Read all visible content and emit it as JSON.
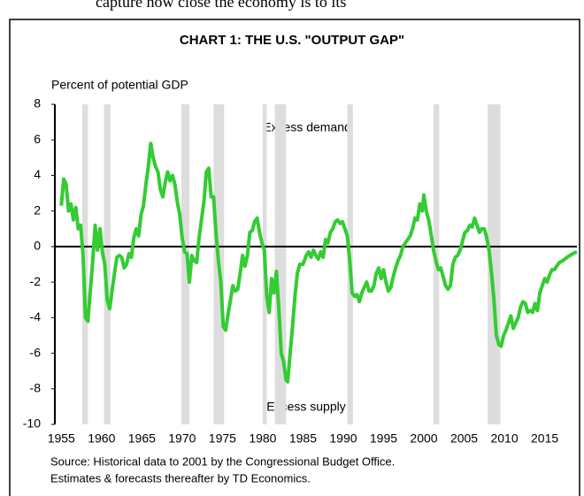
{
  "page_text": "capture how close the economy is to its",
  "chart_data": {
    "type": "line",
    "title": "CHART 1: THE U.S. \"OUTPUT GAP\"",
    "y_label": "Percent of potential GDP",
    "annotations": [
      "Excess demand",
      "Excess supply"
    ],
    "source": [
      "Source: Historical data to 2001 by the Congressional Budget Office.",
      "Estimates & forecasts thereafter by TD Economics."
    ],
    "xlim": [
      1954.2,
      2019
    ],
    "ylim": [
      -10,
      8
    ],
    "xticks": [
      1955,
      1960,
      1965,
      1970,
      1975,
      1980,
      1985,
      1990,
      1995,
      2000,
      2005,
      2010,
      2015
    ],
    "yticks": [
      -10,
      -8,
      -6,
      -4,
      -2,
      0,
      2,
      4,
      6,
      8
    ],
    "shaded_periods": [
      [
        1957.6,
        1958.3
      ],
      [
        1960.3,
        1961.1
      ],
      [
        1969.9,
        1970.9
      ],
      [
        1973.9,
        1975.2
      ],
      [
        1980.0,
        1980.5
      ],
      [
        1981.5,
        1982.9
      ],
      [
        1990.5,
        1991.2
      ],
      [
        2001.2,
        2001.9
      ],
      [
        2007.9,
        2009.5
      ]
    ],
    "shade_color": "#dddddd",
    "series": [
      {
        "name": "Output gap",
        "color": "#33cc33",
        "x": [
          1955.0,
          1955.3,
          1955.6,
          1955.9,
          1956.2,
          1956.5,
          1956.8,
          1957.1,
          1957.4,
          1957.7,
          1958.0,
          1958.3,
          1958.6,
          1958.9,
          1959.2,
          1959.5,
          1959.8,
          1960.1,
          1960.4,
          1960.7,
          1961.0,
          1961.3,
          1961.6,
          1961.9,
          1962.2,
          1962.5,
          1962.8,
          1963.1,
          1963.4,
          1963.7,
          1964.0,
          1964.3,
          1964.6,
          1964.9,
          1965.2,
          1965.5,
          1965.8,
          1966.1,
          1966.4,
          1966.7,
          1967.0,
          1967.3,
          1967.6,
          1967.9,
          1968.2,
          1968.5,
          1968.8,
          1969.1,
          1969.4,
          1969.7,
          1970.0,
          1970.3,
          1970.6,
          1970.9,
          1971.2,
          1971.5,
          1971.8,
          1972.1,
          1972.4,
          1972.7,
          1973.0,
          1973.3,
          1973.6,
          1973.9,
          1974.2,
          1974.5,
          1974.8,
          1975.1,
          1975.4,
          1975.7,
          1976.0,
          1976.3,
          1976.6,
          1976.9,
          1977.2,
          1977.5,
          1977.8,
          1978.1,
          1978.4,
          1978.7,
          1979.0,
          1979.3,
          1979.6,
          1979.9,
          1980.2,
          1980.5,
          1980.8,
          1981.1,
          1981.4,
          1981.7,
          1982.0,
          1982.3,
          1982.6,
          1982.9,
          1983.1,
          1983.4,
          1983.7,
          1984.0,
          1984.3,
          1984.6,
          1985.0,
          1985.4,
          1985.7,
          1986.0,
          1986.3,
          1986.6,
          1986.9,
          1987.2,
          1987.5,
          1987.8,
          1988.1,
          1988.4,
          1988.7,
          1989.0,
          1989.3,
          1989.6,
          1989.9,
          1990.2,
          1990.5,
          1990.8,
          1991.1,
          1991.4,
          1991.7,
          1992.0,
          1992.3,
          1992.6,
          1992.9,
          1993.2,
          1993.5,
          1993.8,
          1994.1,
          1994.4,
          1994.7,
          1995.0,
          1995.3,
          1995.6,
          1995.9,
          1996.2,
          1996.5,
          1996.8,
          1997.1,
          1997.4,
          1997.7,
          1998.0,
          1998.3,
          1998.6,
          1998.9,
          1999.2,
          1999.5,
          1999.8,
          2000.0,
          2000.3,
          2000.6,
          2000.9,
          2001.2,
          2001.5,
          2001.8,
          2002.1,
          2002.4,
          2002.7,
          2003.0,
          2003.3,
          2003.6,
          2003.9,
          2004.2,
          2004.5,
          2004.8,
          2005.1,
          2005.4,
          2005.7,
          2006.0,
          2006.3,
          2006.6,
          2006.9,
          2007.2,
          2007.5,
          2007.8,
          2008.1,
          2008.4,
          2008.7,
          2009.0,
          2009.3,
          2009.6,
          2009.9,
          2010.2,
          2010.5,
          2010.8,
          2011.1,
          2011.4,
          2011.7,
          2012.0,
          2012.3,
          2012.6,
          2012.9,
          2013.2,
          2013.5,
          2013.8,
          2014.1,
          2014.4,
          2014.7,
          2015.0,
          2015.3,
          2015.6,
          2015.9,
          2016.2,
          2016.5,
          2016.8,
          2017.2,
          2017.5,
          2017.8,
          2018.3,
          2018.7,
          2019.0
        ],
        "values": [
          2.3,
          3.8,
          3.5,
          2.0,
          2.4,
          1.5,
          2.2,
          1.0,
          1.2,
          -0.5,
          -4.0,
          -4.2,
          -2.5,
          -0.8,
          1.2,
          -0.2,
          1.0,
          -0.3,
          -1.0,
          -3.0,
          -3.5,
          -2.5,
          -1.5,
          -0.6,
          -0.5,
          -0.6,
          -1.2,
          -1.0,
          -0.4,
          -0.6,
          0.5,
          1.0,
          0.6,
          1.8,
          2.3,
          3.5,
          4.5,
          5.8,
          5.0,
          4.5,
          4.2,
          3.2,
          2.8,
          3.6,
          4.2,
          3.7,
          4.0,
          3.5,
          2.5,
          1.8,
          0.5,
          -0.3,
          -0.4,
          -2.0,
          -0.5,
          -0.8,
          -0.9,
          0.5,
          1.5,
          2.5,
          4.2,
          4.4,
          2.8,
          2.8,
          0.8,
          -0.8,
          -2.0,
          -4.5,
          -4.7,
          -3.8,
          -3.0,
          -2.2,
          -2.5,
          -2.4,
          -1.5,
          -0.5,
          -1.1,
          -0.5,
          0.8,
          0.9,
          1.4,
          1.6,
          0.8,
          0.2,
          -0.2,
          -2.8,
          -3.7,
          -1.8,
          -2.6,
          -1.4,
          -3.5,
          -6.0,
          -6.5,
          -7.5,
          -7.6,
          -6.0,
          -4.5,
          -2.8,
          -1.5,
          -1.0,
          -1.0,
          -0.5,
          -0.3,
          -0.6,
          -0.2,
          -0.5,
          -0.7,
          -0.3,
          -0.6,
          0.4,
          0.2,
          0.8,
          1.0,
          1.4,
          1.5,
          1.3,
          1.4,
          1.0,
          0.6,
          -0.8,
          -2.6,
          -2.8,
          -2.7,
          -3.1,
          -2.6,
          -2.3,
          -2.0,
          -2.5,
          -2.5,
          -2.2,
          -1.5,
          -1.2,
          -1.8,
          -1.3,
          -2.0,
          -2.5,
          -2.3,
          -1.7,
          -1.2,
          -0.8,
          -0.5,
          0.0,
          0.2,
          0.4,
          0.6,
          1.0,
          1.6,
          1.5,
          2.4,
          2.0,
          2.9,
          2.0,
          1.5,
          0.7,
          -0.2,
          -0.8,
          -1.3,
          -1.2,
          -1.7,
          -2.2,
          -2.4,
          -2.2,
          -1.0,
          -0.6,
          -0.5,
          -0.2,
          0.3,
          0.8,
          0.9,
          1.2,
          1.1,
          1.6,
          1.2,
          0.8,
          1.0,
          1.0,
          0.5,
          -0.2,
          -1.5,
          -3.0,
          -5.0,
          -5.5,
          -5.6,
          -5.0,
          -4.7,
          -4.3,
          -3.9,
          -4.6,
          -4.3,
          -4.0,
          -3.4,
          -3.1,
          -3.2,
          -3.7,
          -3.6,
          -3.7,
          -3.2,
          -3.6,
          -2.6,
          -2.2,
          -1.8,
          -2.0,
          -1.6,
          -1.3,
          -1.3,
          -1.1,
          -0.9,
          -0.8,
          -0.7,
          -0.6,
          -0.45,
          -0.35,
          -0.3
        ]
      }
    ]
  }
}
